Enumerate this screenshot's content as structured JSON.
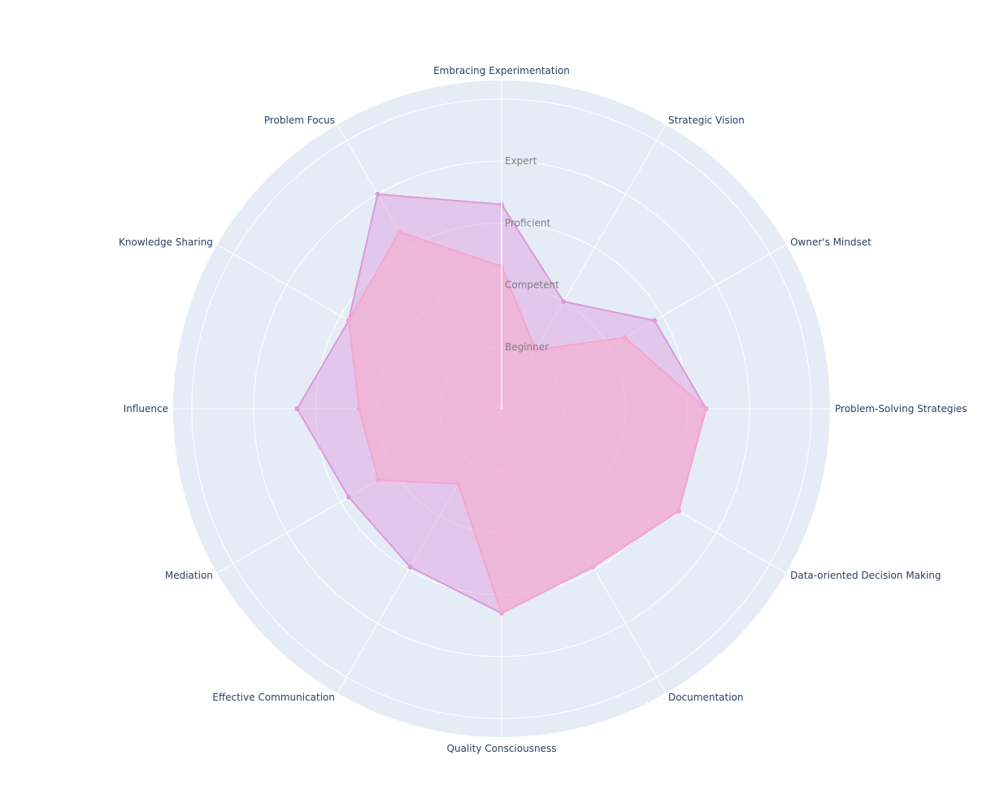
{
  "chart_data": {
    "type": "radar",
    "title": "",
    "categories": [
      "Embracing Experimentation",
      "Strategic Vision",
      "Owner's Mindset",
      "Problem-Solving Strategies",
      "Data-oriented Decision Making",
      "Documentation",
      "Quality Consciousness",
      "Effective Communication",
      "Mediation",
      "Influence",
      "Knowledge Sharing",
      "Problem Focus"
    ],
    "radial_ticks": [
      {
        "value": 1,
        "label": "Beginner"
      },
      {
        "value": 2,
        "label": "Competent"
      },
      {
        "value": 3,
        "label": "Proficient"
      },
      {
        "value": 4,
        "label": "Expert"
      }
    ],
    "rlim": [
      0,
      5.3
    ],
    "grid": true,
    "series": [
      {
        "values": [
          3.3,
          2.0,
          2.85,
          3.3,
          3.3,
          2.95,
          3.3,
          2.95,
          2.85,
          3.3,
          2.85,
          4.0
        ],
        "line_color": "#dd99dd",
        "fill_color": "rgba(221,153,221,0.45)"
      },
      {
        "values": [
          2.3,
          1.1,
          2.3,
          3.3,
          3.3,
          2.95,
          3.3,
          1.4,
          2.3,
          2.3,
          2.85,
          3.3
        ],
        "line_color": "#f4a6d0",
        "fill_color": "rgba(248,170,200,0.55)"
      }
    ],
    "colors": {
      "polar_bg": "#e5ecf6",
      "grid": "#ffffff",
      "axis_text": "#2a3f5f",
      "tick_text": "#7f7f7f"
    }
  }
}
